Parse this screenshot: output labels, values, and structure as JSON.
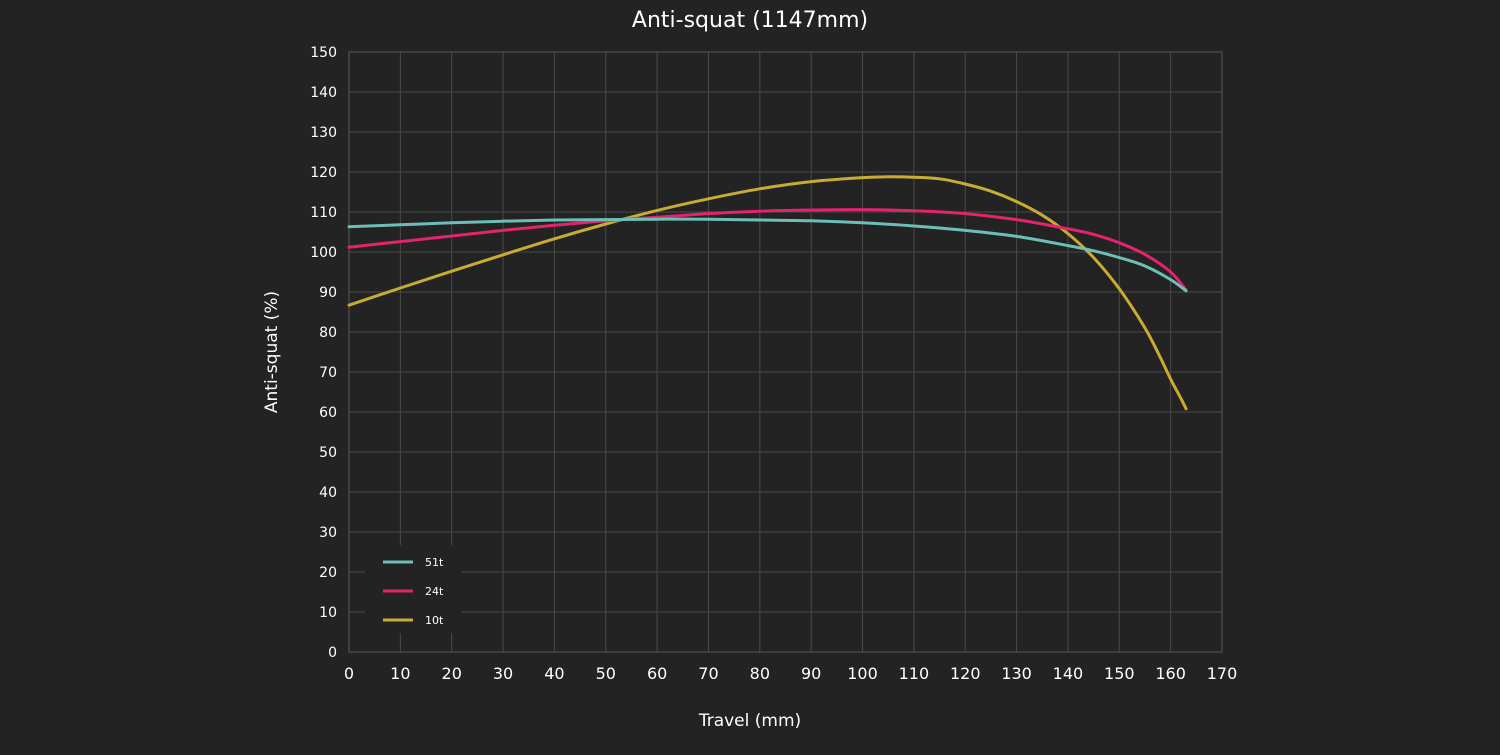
{
  "chart_data": {
    "type": "line",
    "title": "Anti-squat (1147mm)",
    "xlabel": "Travel (mm)",
    "ylabel": "Anti-squat (%)",
    "xlim": [
      0,
      170
    ],
    "ylim": [
      0,
      150
    ],
    "xticks": [
      0,
      10,
      20,
      30,
      40,
      50,
      60,
      70,
      80,
      90,
      100,
      110,
      120,
      130,
      140,
      150,
      160,
      170
    ],
    "yticks": [
      0,
      10,
      20,
      30,
      40,
      50,
      60,
      70,
      80,
      90,
      100,
      110,
      120,
      130,
      140,
      150
    ],
    "grid": true,
    "legend_position": "bottom-left",
    "series": [
      {
        "name": "51t",
        "color": "#6cbfb8",
        "x": [
          0,
          10,
          20,
          30,
          40,
          50,
          60,
          70,
          80,
          90,
          100,
          110,
          120,
          130,
          140,
          145,
          150,
          155,
          160,
          163
        ],
        "values": [
          106.3,
          106.8,
          107.3,
          107.7,
          108.0,
          108.1,
          108.2,
          108.2,
          108.0,
          107.8,
          107.3,
          106.5,
          105.4,
          103.9,
          101.6,
          100.3,
          98.6,
          96.5,
          93.1,
          90.3
        ]
      },
      {
        "name": "24t",
        "color": "#e2236d",
        "x": [
          0,
          10,
          20,
          30,
          40,
          50,
          60,
          70,
          80,
          90,
          100,
          110,
          120,
          130,
          140,
          145,
          150,
          155,
          160,
          163
        ],
        "values": [
          101.2,
          102.6,
          104.0,
          105.4,
          106.7,
          107.8,
          108.7,
          109.6,
          110.2,
          110.5,
          110.6,
          110.3,
          109.6,
          108.1,
          105.8,
          104.4,
          102.3,
          99.4,
          95.0,
          90.5
        ]
      },
      {
        "name": "10t",
        "color": "#c8ab33",
        "x": [
          0,
          10,
          20,
          30,
          40,
          50,
          60,
          70,
          80,
          90,
          100,
          105,
          110,
          115,
          120,
          125,
          130,
          135,
          140,
          145,
          150,
          155,
          158,
          160,
          162,
          163
        ],
        "values": [
          86.7,
          91.0,
          95.2,
          99.3,
          103.3,
          107.0,
          110.4,
          113.3,
          115.8,
          117.6,
          118.6,
          118.8,
          118.7,
          118.3,
          117.0,
          115.2,
          112.6,
          109.2,
          104.6,
          98.6,
          90.8,
          81.0,
          73.6,
          68.2,
          63.4,
          60.8
        ]
      }
    ]
  }
}
